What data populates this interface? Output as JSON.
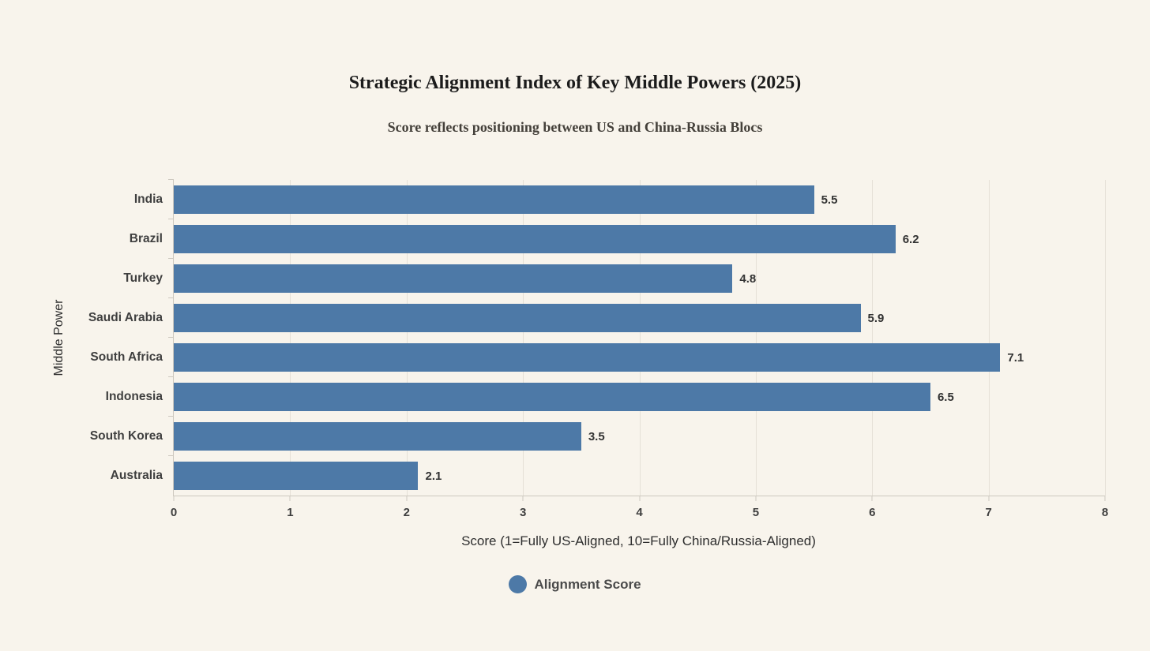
{
  "title": "Strategic Alignment Index of Key Middle Powers (2025)",
  "subtitle": "Score reflects positioning between US and China-Russia Blocs",
  "chart_data": {
    "type": "bar",
    "orientation": "horizontal",
    "title": "Strategic Alignment Index of Key Middle Powers (2025)",
    "subtitle": "Score reflects positioning between US and China-Russia Blocs",
    "categories": [
      "India",
      "Brazil",
      "Turkey",
      "Saudi Arabia",
      "South Africa",
      "Indonesia",
      "South Korea",
      "Australia"
    ],
    "values": [
      5.5,
      6.2,
      4.8,
      5.9,
      7.1,
      6.5,
      3.5,
      2.1
    ],
    "value_labels": [
      "5.5",
      "6.2",
      "4.8",
      "5.9",
      "7.1",
      "6.5",
      "3.5",
      "2.1"
    ],
    "xlabel": "Score (1=Fully US-Aligned, 10=Fully China/Russia-Aligned)",
    "ylabel": "Middle Power",
    "xlim": [
      0,
      8
    ],
    "xticks": [
      "0",
      "1",
      "2",
      "3",
      "4",
      "5",
      "6",
      "7",
      "8"
    ],
    "grid": true,
    "legend": {
      "label": "Alignment Score",
      "position": "bottom"
    },
    "colors": {
      "bar": "#4d79a7",
      "background": "#f8f4ec",
      "gridline": "#e5e0d7",
      "axis": "#cdc8bf"
    }
  }
}
